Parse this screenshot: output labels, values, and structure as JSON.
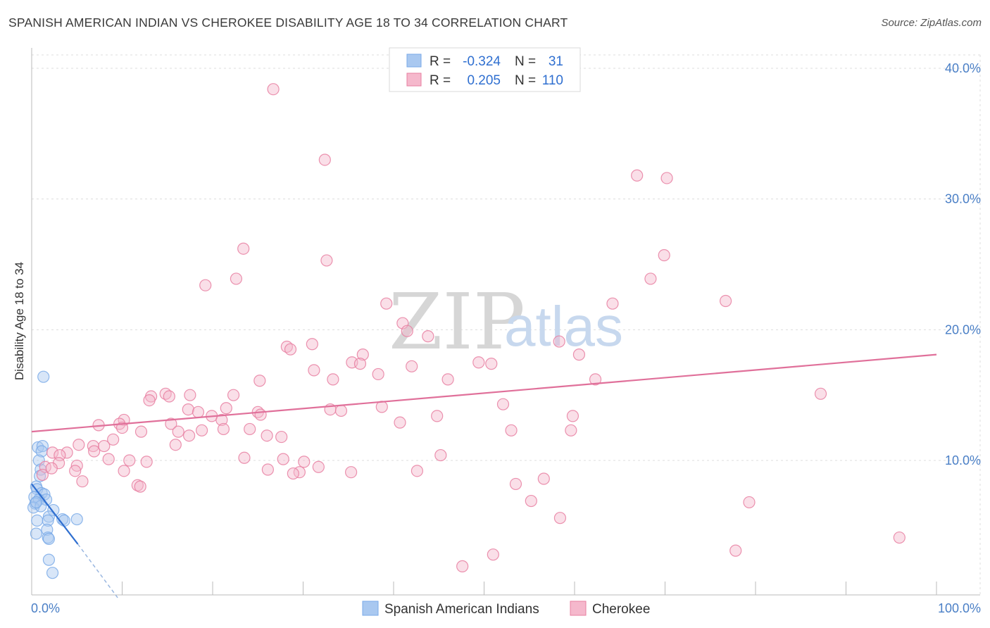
{
  "header": {
    "title": "SPANISH AMERICAN INDIAN VS CHEROKEE DISABILITY AGE 18 TO 34 CORRELATION CHART",
    "source": "Source: ZipAtlas.com"
  },
  "watermark": {
    "part1": "ZIP",
    "part2": "atlas"
  },
  "legend": {
    "rows": [
      {
        "r_label": "R =",
        "r_value": "-0.324",
        "n_label": "N =",
        "n_value": "31",
        "color": "#a9c8f0"
      },
      {
        "r_label": "R =",
        "r_value": "0.205",
        "n_label": "N =",
        "n_value": "110",
        "color": "#f5b8cc"
      }
    ]
  },
  "bottom_legend": {
    "items": [
      {
        "label": "Spanish American Indians",
        "color": "#a9c8f0"
      },
      {
        "label": "Cherokee",
        "color": "#f5b8cc"
      }
    ]
  },
  "chart_data": {
    "type": "scatter",
    "title": "SPANISH AMERICAN INDIAN VS CHEROKEE DISABILITY AGE 18 TO 34 CORRELATION CHART",
    "xlabel": "",
    "ylabel": "Disability Age 18 to 34",
    "xlim": [
      0,
      100
    ],
    "ylim": [
      0,
      42
    ],
    "x_tick_labels": [
      {
        "value": 0,
        "label": "0.0%"
      },
      {
        "value": 100,
        "label": "100.0%"
      }
    ],
    "y_tick_labels": [
      {
        "value": 10,
        "label": "10.0%"
      },
      {
        "value": 20,
        "label": "20.0%"
      },
      {
        "value": 30,
        "label": "30.0%"
      },
      {
        "value": 40,
        "label": "40.0%"
      }
    ],
    "series": [
      {
        "name": "Spanish American Indians",
        "color": "#7aaae8",
        "fill": "#a9c8f0",
        "points": [
          [
            1.3,
            16.4
          ],
          [
            0.7,
            11.0
          ],
          [
            1.2,
            11.1
          ],
          [
            1.1,
            10.7
          ],
          [
            0.8,
            10.0
          ],
          [
            1.0,
            9.3
          ],
          [
            0.9,
            8.8
          ],
          [
            0.5,
            8.0
          ],
          [
            0.6,
            7.8
          ],
          [
            1.1,
            7.5
          ],
          [
            1.4,
            7.4
          ],
          [
            0.3,
            7.2
          ],
          [
            0.8,
            7.0
          ],
          [
            1.6,
            7.0
          ],
          [
            0.4,
            6.7
          ],
          [
            0.2,
            6.4
          ],
          [
            1.0,
            6.5
          ],
          [
            2.4,
            6.2
          ],
          [
            1.9,
            5.7
          ],
          [
            1.8,
            5.4
          ],
          [
            0.6,
            5.4
          ],
          [
            3.4,
            5.5
          ],
          [
            3.6,
            5.4
          ],
          [
            5.0,
            5.5
          ],
          [
            1.7,
            4.7
          ],
          [
            0.5,
            4.4
          ],
          [
            1.8,
            4.1
          ],
          [
            1.9,
            4.0
          ],
          [
            1.9,
            2.4
          ],
          [
            2.3,
            1.4
          ],
          [
            0.5,
            6.8
          ]
        ],
        "trend": {
          "x": [
            0,
            5.1
          ],
          "y": [
            8.2,
            3.6
          ],
          "dashed_to": [
            9.5,
            -0.5
          ]
        }
      },
      {
        "name": "Cherokee",
        "color": "#e87fa1",
        "fill": "#f5b8cc",
        "points": [
          [
            26.7,
            38.4
          ],
          [
            32.4,
            33.0
          ],
          [
            66.9,
            31.8
          ],
          [
            70.2,
            31.6
          ],
          [
            23.4,
            26.2
          ],
          [
            32.6,
            25.3
          ],
          [
            69.9,
            25.7
          ],
          [
            22.6,
            23.9
          ],
          [
            19.2,
            23.4
          ],
          [
            68.4,
            23.9
          ],
          [
            39.2,
            22.0
          ],
          [
            64.2,
            22.0
          ],
          [
            76.7,
            22.2
          ],
          [
            41.0,
            20.5
          ],
          [
            41.5,
            19.9
          ],
          [
            43.8,
            19.5
          ],
          [
            58.3,
            19.1
          ],
          [
            28.2,
            18.7
          ],
          [
            28.6,
            18.5
          ],
          [
            31.0,
            18.9
          ],
          [
            36.6,
            18.1
          ],
          [
            60.5,
            18.1
          ],
          [
            35.4,
            17.5
          ],
          [
            36.3,
            17.4
          ],
          [
            42.0,
            17.2
          ],
          [
            49.4,
            17.5
          ],
          [
            50.8,
            17.4
          ],
          [
            31.2,
            16.9
          ],
          [
            38.3,
            16.6
          ],
          [
            25.2,
            16.1
          ],
          [
            33.3,
            16.2
          ],
          [
            46.0,
            16.2
          ],
          [
            62.3,
            16.2
          ],
          [
            13.2,
            14.9
          ],
          [
            14.8,
            15.1
          ],
          [
            15.2,
            14.9
          ],
          [
            17.5,
            15.0
          ],
          [
            22.3,
            15.0
          ],
          [
            87.2,
            15.1
          ],
          [
            13.0,
            14.6
          ],
          [
            17.3,
            13.9
          ],
          [
            18.4,
            13.7
          ],
          [
            21.5,
            14.0
          ],
          [
            25.0,
            13.7
          ],
          [
            25.3,
            13.5
          ],
          [
            33.0,
            13.9
          ],
          [
            34.2,
            13.8
          ],
          [
            38.7,
            14.1
          ],
          [
            44.8,
            13.4
          ],
          [
            52.1,
            14.3
          ],
          [
            59.8,
            13.4
          ],
          [
            10.2,
            13.1
          ],
          [
            9.7,
            12.8
          ],
          [
            15.4,
            12.8
          ],
          [
            19.9,
            13.4
          ],
          [
            21.0,
            13.1
          ],
          [
            7.4,
            12.7
          ],
          [
            10.0,
            12.5
          ],
          [
            12.1,
            12.2
          ],
          [
            16.2,
            12.2
          ],
          [
            18.8,
            12.3
          ],
          [
            21.2,
            12.4
          ],
          [
            24.1,
            12.4
          ],
          [
            40.7,
            12.9
          ],
          [
            53.0,
            12.3
          ],
          [
            59.6,
            12.3
          ],
          [
            9.0,
            11.6
          ],
          [
            17.4,
            11.9
          ],
          [
            26.0,
            11.9
          ],
          [
            27.6,
            11.8
          ],
          [
            5.2,
            11.2
          ],
          [
            6.8,
            11.1
          ],
          [
            8.0,
            11.1
          ],
          [
            15.9,
            11.2
          ],
          [
            2.3,
            10.6
          ],
          [
            3.9,
            10.6
          ],
          [
            3.1,
            10.4
          ],
          [
            6.9,
            10.7
          ],
          [
            8.5,
            10.1
          ],
          [
            23.5,
            10.2
          ],
          [
            27.8,
            10.1
          ],
          [
            30.1,
            9.9
          ],
          [
            45.2,
            10.4
          ],
          [
            3.0,
            9.8
          ],
          [
            5.0,
            9.6
          ],
          [
            10.8,
            10.0
          ],
          [
            12.7,
            9.9
          ],
          [
            1.5,
            9.5
          ],
          [
            4.8,
            9.2
          ],
          [
            10.2,
            9.2
          ],
          [
            26.1,
            9.3
          ],
          [
            29.6,
            9.1
          ],
          [
            28.9,
            9.0
          ],
          [
            31.7,
            9.5
          ],
          [
            35.3,
            9.1
          ],
          [
            42.6,
            9.2
          ],
          [
            1.2,
            8.9
          ],
          [
            5.6,
            8.4
          ],
          [
            11.7,
            8.1
          ],
          [
            53.5,
            8.2
          ],
          [
            56.6,
            8.6
          ],
          [
            55.2,
            6.9
          ],
          [
            79.3,
            6.8
          ],
          [
            58.4,
            5.6
          ],
          [
            77.8,
            3.1
          ],
          [
            95.9,
            4.1
          ],
          [
            51.0,
            2.8
          ],
          [
            47.6,
            1.9
          ],
          [
            2.2,
            9.4
          ],
          [
            12.0,
            8.0
          ]
        ],
        "trend": {
          "x": [
            0,
            100
          ],
          "y": [
            12.2,
            18.1
          ]
        }
      }
    ],
    "grid": true
  }
}
